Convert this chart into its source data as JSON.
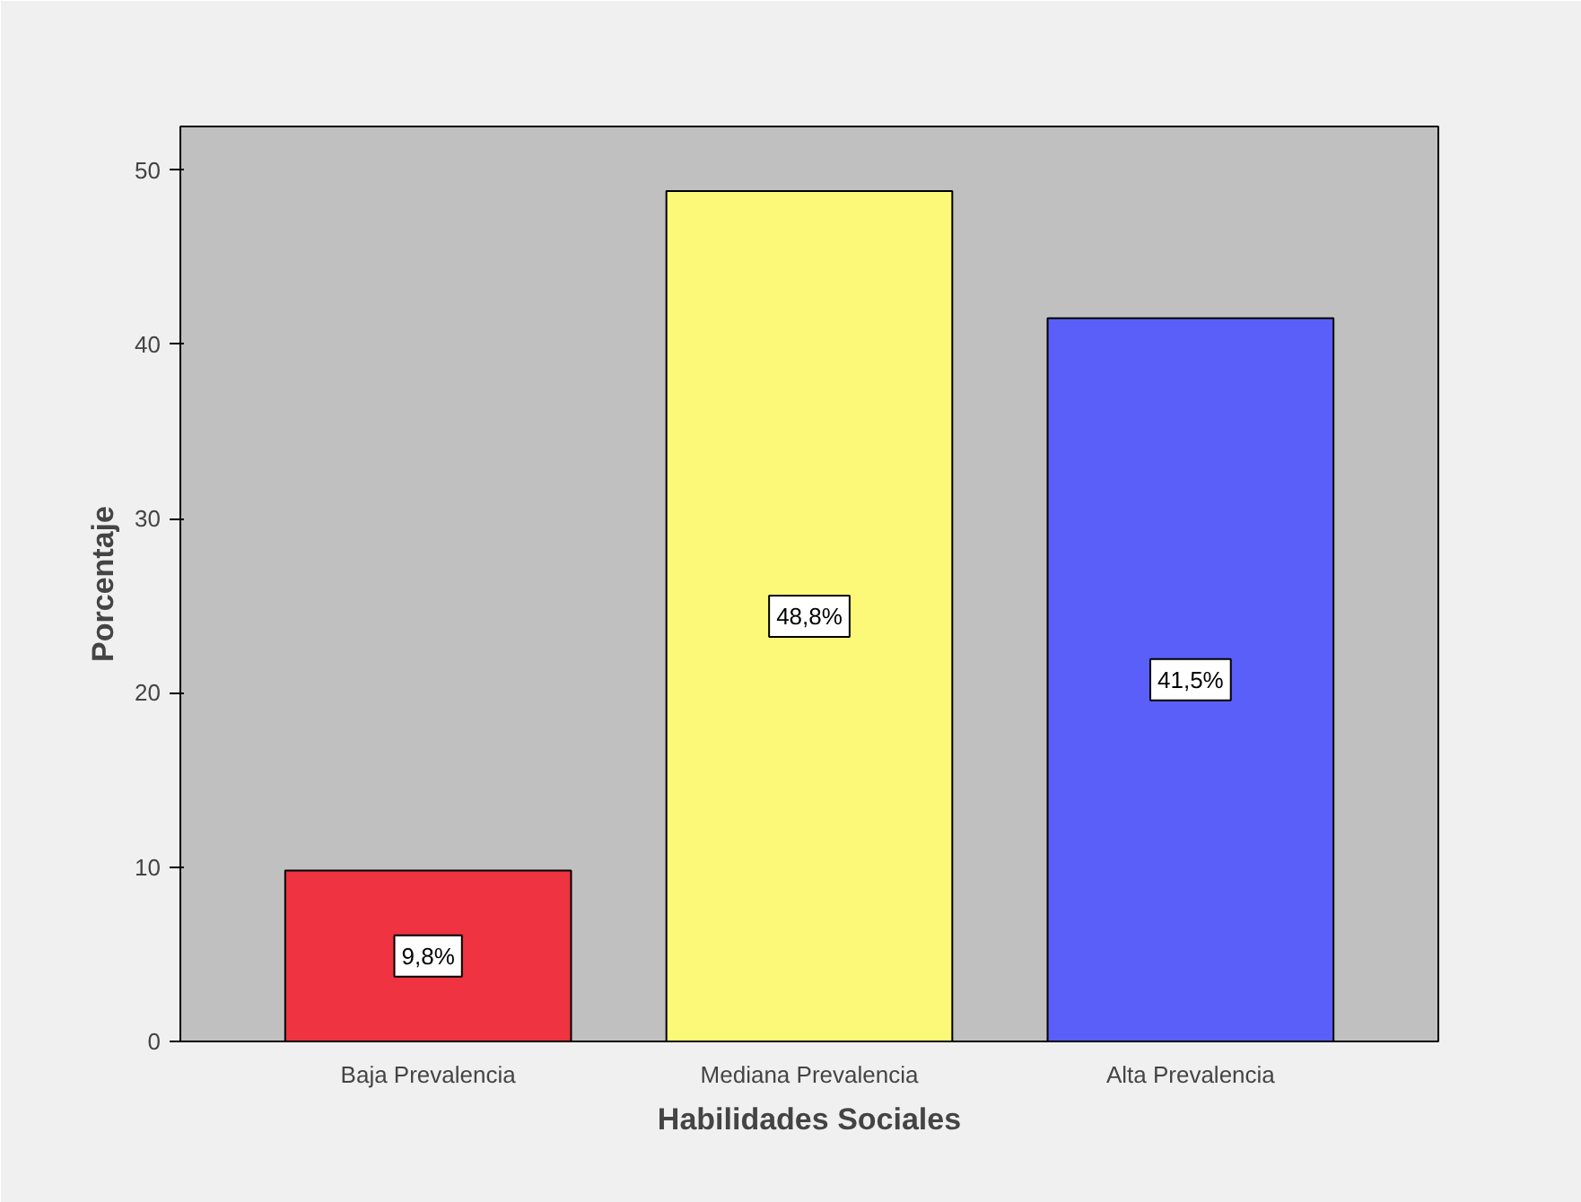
{
  "chart_data": {
    "type": "bar",
    "xlabel": "Habilidades Sociales",
    "ylabel": "Porcentaje",
    "categories": [
      "Baja Prevalencia",
      "Mediana Prevalencia",
      "Alta Prevalencia"
    ],
    "values": [
      9.8,
      48.8,
      41.5
    ],
    "colors": [
      "#ef3340",
      "#fbf977",
      "#5a5ff9"
    ],
    "value_labels": [
      "9,8%",
      "48,8%",
      "41,5%"
    ],
    "ylim": [
      0,
      52.5
    ],
    "yticks": [
      0,
      10,
      20,
      30,
      40,
      50
    ],
    "grid": false
  }
}
